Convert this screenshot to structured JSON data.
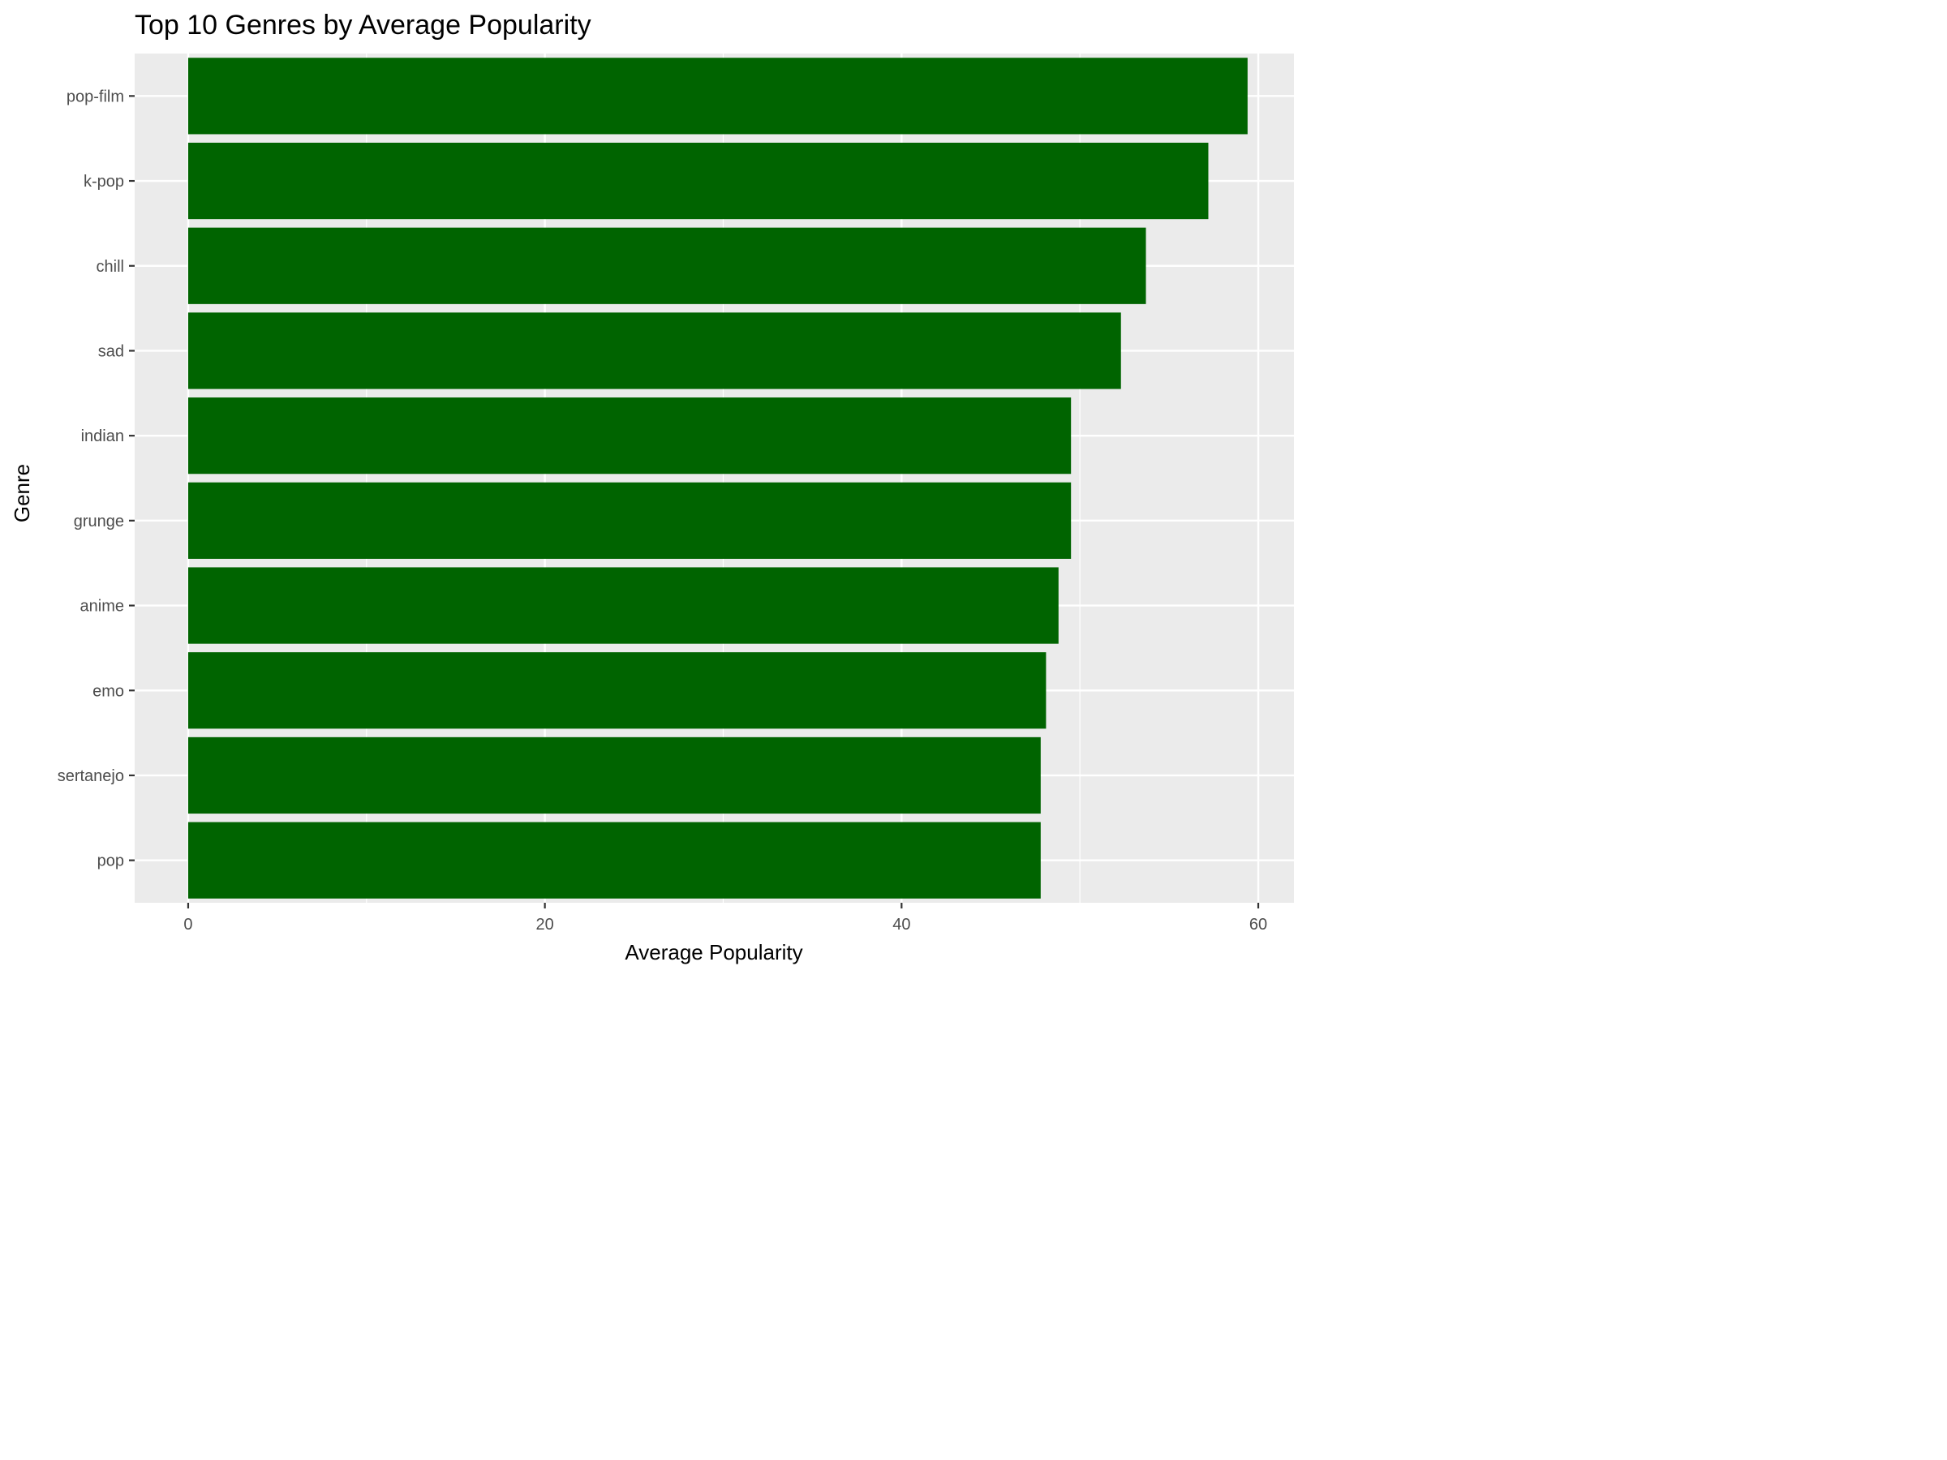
{
  "chart_data": {
    "type": "bar",
    "orientation": "horizontal",
    "title": "Top 10 Genres by Average Popularity",
    "xlabel": "Average Popularity",
    "ylabel": "Genre",
    "categories": [
      "pop-film",
      "k-pop",
      "chill",
      "sad",
      "indian",
      "grunge",
      "anime",
      "emo",
      "sertanejo",
      "pop"
    ],
    "values": [
      59.4,
      57.2,
      53.7,
      52.3,
      49.5,
      49.5,
      48.8,
      48.1,
      47.8,
      47.8
    ],
    "xlim": [
      -3,
      62
    ],
    "xticks": [
      0,
      20,
      40,
      60
    ],
    "xtick_labels": [
      "0",
      "20",
      "40",
      "60"
    ],
    "grid": true,
    "legend": "none",
    "colors": {
      "bar": "#006400",
      "panel_background": "#ebebeb",
      "grid_line": "#ffffff",
      "tick_label": "#4d4d4d",
      "tick_mark": "#333333"
    }
  }
}
